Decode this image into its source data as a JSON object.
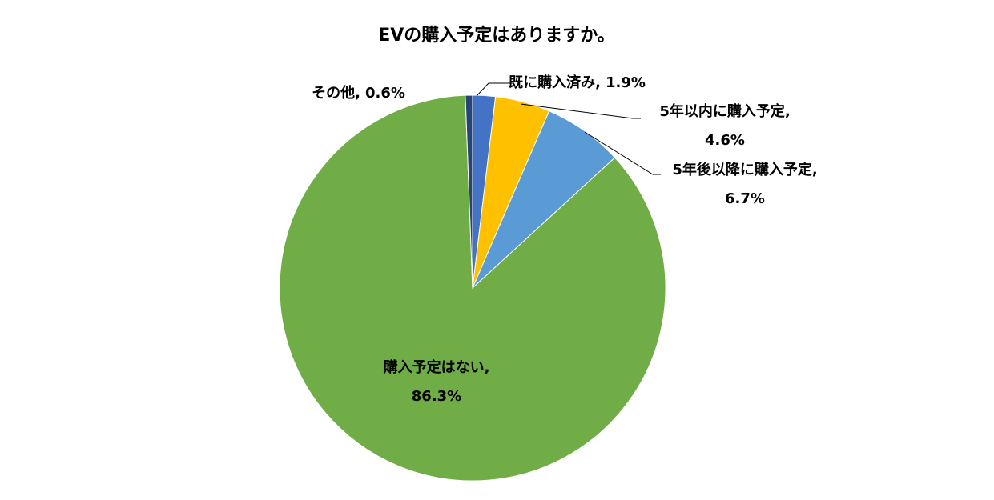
{
  "chart_data": {
    "type": "pie",
    "title": "EVの購入予定はありますか。",
    "categories": [
      "既に購入済み,",
      "5年以内に購入予定,",
      "5年後以降に購入予定,",
      "購入予定はない,",
      "その他,"
    ],
    "values": [
      1.9,
      4.6,
      6.7,
      86.3,
      0.6
    ],
    "value_labels": [
      "1.9%",
      "4.6%",
      "6.7%",
      "86.3%",
      "0.6%"
    ],
    "colors": [
      "#4472c4",
      "#ffc000",
      "#5b9bd5",
      "#70ad47",
      "#264478"
    ]
  }
}
